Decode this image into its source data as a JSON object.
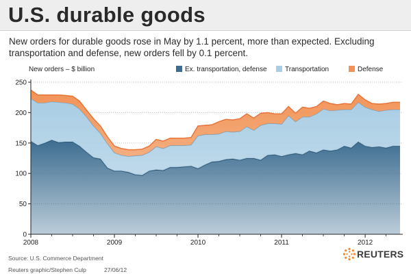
{
  "header": {
    "title": "U.S. durable goods",
    "subtitle": "New orders for durable goods rose in May by 1.1 percent, more than expected. Excluding transportation and defense, new orders fell by 0.1 percent."
  },
  "footer": {
    "source": "Source: U.S. Commerce Department",
    "credit": "Reuters graphic/Stephen Culp",
    "date": "27/06/12",
    "logo_text": "REUTERS"
  },
  "colors": {
    "ex_transport": "#3d6d91",
    "transportation": "#a9cde4",
    "defense": "#f19356",
    "grid": "#bbbbbb",
    "axis": "#222222"
  },
  "chart_data": {
    "type": "area",
    "stacked": true,
    "ylabel": "New orders – $ billion",
    "ylim": [
      0,
      250
    ],
    "yticks": [
      0,
      50,
      100,
      150,
      200,
      250
    ],
    "xlim": [
      2008.0,
      2012.45
    ],
    "xtick_labels": [
      "2008",
      "2009",
      "2010",
      "2011",
      "2012"
    ],
    "grid": "horizontal dotted",
    "legend_position": "top",
    "x": [
      2008.0,
      2008.083,
      2008.167,
      2008.25,
      2008.333,
      2008.417,
      2008.5,
      2008.583,
      2008.667,
      2008.75,
      2008.833,
      2008.917,
      2009.0,
      2009.083,
      2009.167,
      2009.25,
      2009.333,
      2009.417,
      2009.5,
      2009.583,
      2009.667,
      2009.75,
      2009.833,
      2009.917,
      2010.0,
      2010.083,
      2010.167,
      2010.25,
      2010.333,
      2010.417,
      2010.5,
      2010.583,
      2010.667,
      2010.75,
      2010.833,
      2010.917,
      2011.0,
      2011.083,
      2011.167,
      2011.25,
      2011.333,
      2011.417,
      2011.5,
      2011.583,
      2011.667,
      2011.75,
      2011.833,
      2011.917,
      2012.0,
      2012.083,
      2012.167,
      2012.25,
      2012.333,
      2012.417
    ],
    "series": [
      {
        "name": "Ex. transportation, defense",
        "values": [
          153,
          146,
          150,
          155,
          151,
          152,
          152,
          145,
          135,
          126,
          124,
          109,
          104,
          104,
          102,
          98,
          97,
          104,
          106,
          105,
          110,
          110,
          111,
          112,
          108,
          114,
          119,
          120,
          123,
          124,
          122,
          125,
          125,
          122,
          130,
          131,
          128,
          131,
          133,
          131,
          137,
          134,
          139,
          137,
          139,
          145,
          142,
          152,
          145,
          143,
          144,
          142,
          145,
          145
        ]
      },
      {
        "name": "Transportation",
        "values": [
          70,
          70,
          66,
          63,
          66,
          64,
          62,
          61,
          58,
          52,
          42,
          40,
          30,
          26,
          26,
          31,
          33,
          31,
          38,
          36,
          36,
          36,
          35,
          35,
          54,
          50,
          45,
          45,
          46,
          44,
          47,
          52,
          46,
          57,
          52,
          51,
          53,
          64,
          52,
          62,
          56,
          64,
          67,
          66,
          65,
          60,
          63,
          65,
          64,
          62,
          58,
          62,
          60,
          60
        ]
      },
      {
        "name": "Defense",
        "values": [
          14,
          13,
          13,
          11,
          12,
          12,
          13,
          13,
          11,
          12,
          12,
          11,
          11,
          11,
          11,
          10,
          10,
          10,
          12,
          12,
          12,
          12,
          12,
          12,
          16,
          15,
          16,
          20,
          20,
          20,
          21,
          21,
          20,
          20,
          18,
          16,
          17,
          15,
          14,
          16,
          14,
          12,
          13,
          12,
          9,
          10,
          9,
          13,
          12,
          10,
          12,
          11,
          12,
          12
        ]
      }
    ]
  }
}
